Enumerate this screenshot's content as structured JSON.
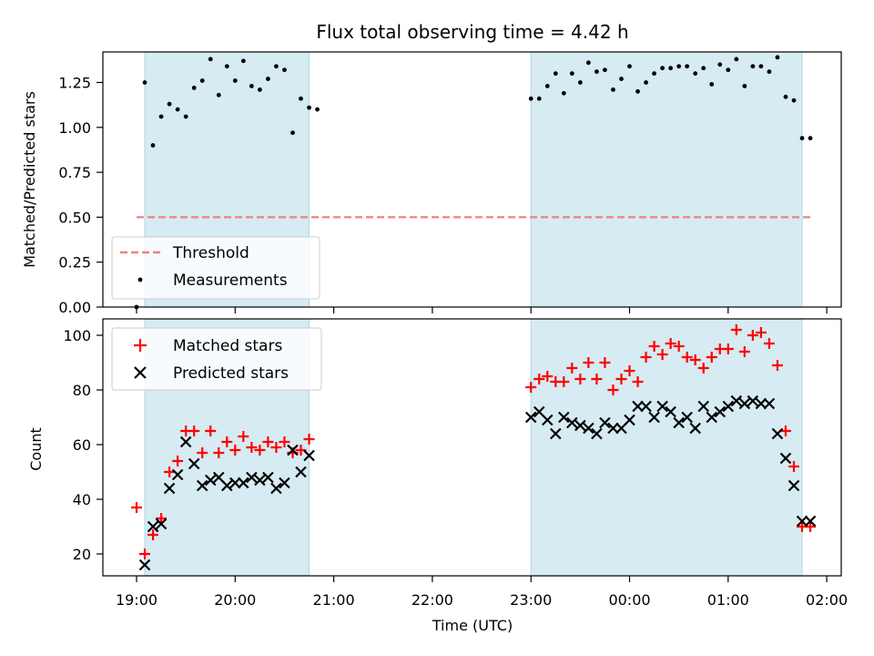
{
  "title": "Flux total observing time = 4.42 h",
  "colors": {
    "shade": "#add8e6",
    "threshold": "#f08080",
    "matched": "#ff0000",
    "predicted": "#000000"
  },
  "chart_data": [
    {
      "type": "scatter",
      "ylabel": "Matched/Predicted stars",
      "ylim": [
        0,
        1.42
      ],
      "yticks": [
        0.0,
        0.25,
        0.5,
        0.75,
        1.0,
        1.25
      ],
      "ytick_labels": [
        "0.00",
        "0.25",
        "0.50",
        "0.75",
        "1.00",
        "1.25"
      ],
      "legend": {
        "placement": "lower-left",
        "entries": [
          "Threshold",
          "Measurements"
        ]
      },
      "threshold": {
        "name": "Threshold",
        "value": 0.5,
        "x_start": "19:00",
        "x_end": "01:50"
      },
      "series": [
        {
          "name": "Measurements",
          "x": [
            "19:00",
            "19:05",
            "19:10",
            "19:15",
            "19:20",
            "19:25",
            "19:30",
            "19:35",
            "19:40",
            "19:45",
            "19:50",
            "19:55",
            "20:00",
            "20:05",
            "20:10",
            "20:15",
            "20:20",
            "20:25",
            "20:30",
            "20:35",
            "20:40",
            "20:45",
            "20:50",
            "23:00",
            "23:05",
            "23:10",
            "23:15",
            "23:20",
            "23:25",
            "23:30",
            "23:35",
            "23:40",
            "23:45",
            "23:50",
            "23:55",
            "00:00",
            "00:05",
            "00:10",
            "00:15",
            "00:20",
            "00:25",
            "00:30",
            "00:35",
            "00:40",
            "00:45",
            "00:50",
            "00:55",
            "01:00",
            "01:05",
            "01:10",
            "01:15",
            "01:20",
            "01:25",
            "01:30",
            "01:35",
            "01:40",
            "01:45",
            "01:50"
          ],
          "y": [
            0.0,
            1.25,
            0.9,
            1.06,
            1.13,
            1.1,
            1.06,
            1.22,
            1.26,
            1.38,
            1.18,
            1.34,
            1.26,
            1.37,
            1.23,
            1.21,
            1.27,
            1.34,
            1.32,
            0.97,
            1.16,
            1.11,
            1.1,
            1.16,
            1.16,
            1.23,
            1.3,
            1.19,
            1.3,
            1.25,
            1.36,
            1.31,
            1.32,
            1.21,
            1.27,
            1.34,
            1.2,
            1.25,
            1.3,
            1.33,
            1.33,
            1.34,
            1.34,
            1.3,
            1.33,
            1.24,
            1.35,
            1.32,
            1.38,
            1.23,
            1.34,
            1.34,
            1.31,
            1.39,
            1.17,
            1.15,
            0.94,
            0.94
          ]
        }
      ]
    },
    {
      "type": "scatter",
      "xlabel": "Time (UTC)",
      "ylabel": "Count",
      "ylim": [
        12,
        106
      ],
      "yticks": [
        20,
        40,
        60,
        80,
        100
      ],
      "ytick_labels": [
        "20",
        "40",
        "60",
        "80",
        "100"
      ],
      "legend": {
        "placement": "top-left",
        "entries": [
          "Matched stars",
          "Predicted stars"
        ]
      },
      "series": [
        {
          "name": "Matched stars",
          "marker": "+",
          "x": [
            "19:00",
            "19:05",
            "19:10",
            "19:15",
            "19:20",
            "19:25",
            "19:30",
            "19:35",
            "19:40",
            "19:45",
            "19:50",
            "19:55",
            "20:00",
            "20:05",
            "20:10",
            "20:15",
            "20:20",
            "20:25",
            "20:30",
            "20:35",
            "20:40",
            "20:45",
            "23:00",
            "23:05",
            "23:10",
            "23:15",
            "23:20",
            "23:25",
            "23:30",
            "23:35",
            "23:40",
            "23:45",
            "23:50",
            "23:55",
            "00:00",
            "00:05",
            "00:10",
            "00:15",
            "00:20",
            "00:25",
            "00:30",
            "00:35",
            "00:40",
            "00:45",
            "00:50",
            "00:55",
            "01:00",
            "01:05",
            "01:10",
            "01:15",
            "01:20",
            "01:25",
            "01:30",
            "01:35",
            "01:40",
            "01:45",
            "01:50"
          ],
          "y": [
            37,
            20,
            27,
            33,
            50,
            54,
            65,
            65,
            57,
            65,
            57,
            61,
            58,
            63,
            59,
            58,
            61,
            59,
            61,
            57,
            58,
            62,
            81,
            84,
            85,
            83,
            83,
            88,
            84,
            90,
            84,
            90,
            80,
            84,
            87,
            83,
            92,
            96,
            93,
            97,
            96,
            92,
            91,
            88,
            92,
            95,
            95,
            102,
            94,
            100,
            101,
            97,
            89,
            65,
            52,
            30,
            30
          ]
        },
        {
          "name": "Predicted stars",
          "marker": "x",
          "x": [
            "19:05",
            "19:10",
            "19:15",
            "19:20",
            "19:25",
            "19:30",
            "19:35",
            "19:40",
            "19:45",
            "19:50",
            "19:55",
            "20:00",
            "20:05",
            "20:10",
            "20:15",
            "20:20",
            "20:25",
            "20:30",
            "20:35",
            "20:40",
            "20:45",
            "23:00",
            "23:05",
            "23:10",
            "23:15",
            "23:20",
            "23:25",
            "23:30",
            "23:35",
            "23:40",
            "23:45",
            "23:50",
            "23:55",
            "00:00",
            "00:05",
            "00:10",
            "00:15",
            "00:20",
            "00:25",
            "00:30",
            "00:35",
            "00:40",
            "00:45",
            "00:50",
            "00:55",
            "01:00",
            "01:05",
            "01:10",
            "01:15",
            "01:20",
            "01:25",
            "01:30",
            "01:35",
            "01:40",
            "01:45",
            "01:50"
          ],
          "y": [
            16,
            30,
            31,
            44,
            49,
            61,
            53,
            45,
            47,
            48,
            45,
            46,
            46,
            48,
            47,
            48,
            44,
            46,
            58,
            50,
            56,
            70,
            72,
            69,
            64,
            70,
            68,
            67,
            66,
            64,
            68,
            66,
            66,
            69,
            74,
            74,
            70,
            74,
            72,
            68,
            70,
            66,
            74,
            70,
            72,
            74,
            76,
            75,
            76,
            75,
            75,
            64,
            55,
            45,
            32,
            32
          ]
        }
      ]
    }
  ],
  "shaded_intervals": [
    [
      "19:05",
      "20:45"
    ],
    [
      "23:00",
      "01:45"
    ]
  ],
  "x_axis": {
    "ticks": [
      "19:00",
      "20:00",
      "21:00",
      "22:00",
      "23:00",
      "00:00",
      "01:00",
      "02:00"
    ]
  }
}
